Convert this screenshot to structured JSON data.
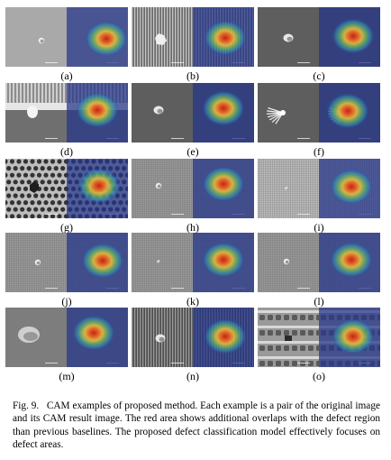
{
  "panels": [
    {
      "label": "(a)",
      "bg": "plain-light",
      "defect": "small-particle"
    },
    {
      "label": "(b)",
      "bg": "vertical-stripes",
      "defect": "irregular-blob"
    },
    {
      "label": "(c)",
      "bg": "plain-dark",
      "defect": "particle"
    },
    {
      "label": "(d)",
      "bg": "trench-structure",
      "defect": "bridge"
    },
    {
      "label": "(e)",
      "bg": "plain-dark",
      "defect": "particle"
    },
    {
      "label": "(f)",
      "bg": "plain-dark",
      "defect": "scratch-splash"
    },
    {
      "label": "(g)",
      "bg": "hex-holes",
      "defect": "missing-hole"
    },
    {
      "label": "(h)",
      "bg": "fine-grid",
      "defect": "small-particle"
    },
    {
      "label": "(i)",
      "bg": "fine-grid-light",
      "defect": "tiny-spot"
    },
    {
      "label": "(j)",
      "bg": "fine-grid",
      "defect": "small-particle"
    },
    {
      "label": "(k)",
      "bg": "fine-grid",
      "defect": "tiny-spot"
    },
    {
      "label": "(l)",
      "bg": "fine-grid",
      "defect": "small-particle"
    },
    {
      "label": "(m)",
      "bg": "plain-medium",
      "defect": "large-particle"
    },
    {
      "label": "(n)",
      "bg": "vertical-stripes-dark",
      "defect": "particle"
    },
    {
      "label": "(o)",
      "bg": "repeating-pattern",
      "defect": "pattern-defect"
    }
  ],
  "caption": {
    "fig": "Fig. 9.",
    "text": "CAM examples of proposed method. Each example is a pair of the original image and its CAM result image. The red area shows additional overlaps with the defect region than previous baselines. The proposed defect classification model effectively focuses on defect areas."
  },
  "colors": {
    "cam_background": "#2a3a8e",
    "cam_hot": "#d62818",
    "cam_warm": "#f1c232",
    "cam_mid": "#3bb38a"
  }
}
